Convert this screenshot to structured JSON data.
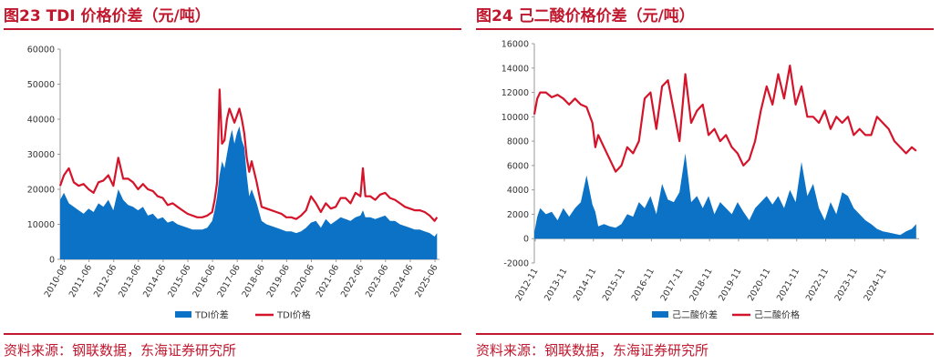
{
  "colors": {
    "accent": "#c0182e",
    "area": "#0b72c6",
    "line": "#d4142a",
    "axis": "#999999",
    "text": "#333333"
  },
  "chart_data": [
    {
      "type": "area+line",
      "title": "图23  TDI 价格价差（元/吨）",
      "source": "资料来源：钢联数据，东海证券研究所",
      "y_ticks": [
        "0",
        "10000",
        "20000",
        "30000",
        "40000",
        "50000",
        "60000"
      ],
      "ylim": [
        0,
        60000
      ],
      "x_ticks": [
        "2010-06",
        "2011-06",
        "2012-06",
        "2013-06",
        "2014-06",
        "2015-06",
        "2016-06",
        "2017-06",
        "2018-06",
        "2019-06",
        "2020-06",
        "2021-06",
        "2022-06",
        "2023-06",
        "2024-06",
        "2025-06"
      ],
      "xlim": [
        2010.25,
        2025.6
      ],
      "grid": false,
      "legend_position": "bottom",
      "series": [
        {
          "name": "TDI价差",
          "kind": "area",
          "x": [
            2010.25,
            2010.4,
            2010.6,
            2010.8,
            2011.0,
            2011.2,
            2011.4,
            2011.6,
            2011.8,
            2012.0,
            2012.2,
            2012.4,
            2012.6,
            2012.8,
            2013.0,
            2013.2,
            2013.4,
            2013.6,
            2013.8,
            2014.0,
            2014.2,
            2014.4,
            2014.6,
            2014.8,
            2015.0,
            2015.2,
            2015.4,
            2015.6,
            2015.8,
            2016.0,
            2016.2,
            2016.4,
            2016.5,
            2016.6,
            2016.7,
            2016.8,
            2016.9,
            2017.0,
            2017.1,
            2017.2,
            2017.3,
            2017.4,
            2017.5,
            2017.6,
            2017.7,
            2017.8,
            2017.9,
            2018.0,
            2018.2,
            2018.4,
            2018.6,
            2018.8,
            2019.0,
            2019.2,
            2019.4,
            2019.6,
            2019.8,
            2020.0,
            2020.2,
            2020.4,
            2020.6,
            2020.8,
            2021.0,
            2021.2,
            2021.4,
            2021.6,
            2021.8,
            2022.0,
            2022.2,
            2022.4,
            2022.5,
            2022.6,
            2022.8,
            2023.0,
            2023.2,
            2023.4,
            2023.6,
            2023.8,
            2024.0,
            2024.2,
            2024.4,
            2024.6,
            2024.8,
            2025.0,
            2025.2,
            2025.4,
            2025.5
          ],
          "y": [
            17000,
            19000,
            16000,
            15000,
            14000,
            13000,
            14500,
            13500,
            16000,
            15000,
            17000,
            14000,
            20000,
            17000,
            15500,
            15000,
            14000,
            15000,
            12500,
            13000,
            11500,
            12000,
            10500,
            11000,
            10000,
            9500,
            9000,
            8500,
            8500,
            8500,
            9000,
            11000,
            14000,
            18000,
            24000,
            28000,
            26000,
            30000,
            34000,
            37000,
            33000,
            36000,
            38000,
            34000,
            32000,
            24000,
            18000,
            20000,
            16000,
            11000,
            10000,
            9500,
            9000,
            8500,
            8000,
            8000,
            7500,
            8000,
            9000,
            10500,
            11000,
            9000,
            11500,
            10000,
            11000,
            12000,
            11500,
            11000,
            12000,
            12500,
            14000,
            12000,
            12000,
            11500,
            12000,
            12500,
            11000,
            11000,
            10000,
            9500,
            9000,
            8500,
            8500,
            8000,
            7500,
            6500,
            7500
          ]
        },
        {
          "name": "TDI价格",
          "kind": "line",
          "x": [
            2010.25,
            2010.4,
            2010.6,
            2010.8,
            2011.0,
            2011.2,
            2011.4,
            2011.6,
            2011.8,
            2012.0,
            2012.2,
            2012.4,
            2012.6,
            2012.8,
            2013.0,
            2013.2,
            2013.4,
            2013.6,
            2013.8,
            2014.0,
            2014.2,
            2014.4,
            2014.6,
            2014.8,
            2015.0,
            2015.2,
            2015.4,
            2015.6,
            2015.8,
            2016.0,
            2016.2,
            2016.4,
            2016.5,
            2016.6,
            2016.7,
            2016.8,
            2016.9,
            2017.0,
            2017.1,
            2017.2,
            2017.3,
            2017.4,
            2017.5,
            2017.6,
            2017.7,
            2017.8,
            2017.9,
            2018.0,
            2018.2,
            2018.4,
            2018.6,
            2018.8,
            2019.0,
            2019.2,
            2019.4,
            2019.6,
            2019.8,
            2020.0,
            2020.2,
            2020.4,
            2020.6,
            2020.8,
            2021.0,
            2021.2,
            2021.4,
            2021.6,
            2021.8,
            2022.0,
            2022.2,
            2022.4,
            2022.5,
            2022.6,
            2022.8,
            2023.0,
            2023.2,
            2023.4,
            2023.6,
            2023.8,
            2024.0,
            2024.2,
            2024.4,
            2024.6,
            2024.8,
            2025.0,
            2025.2,
            2025.4,
            2025.5
          ],
          "y": [
            21000,
            24000,
            26000,
            22000,
            21000,
            21500,
            20000,
            19000,
            22000,
            22500,
            24000,
            21000,
            29000,
            23000,
            23000,
            22000,
            20000,
            21500,
            20000,
            19500,
            18000,
            17500,
            15500,
            16000,
            15000,
            14000,
            13000,
            12500,
            12000,
            12000,
            12500,
            13500,
            17000,
            22000,
            48500,
            33000,
            34000,
            40000,
            43000,
            41000,
            39000,
            41000,
            43000,
            40000,
            36000,
            29000,
            25000,
            28000,
            22000,
            15000,
            14500,
            14000,
            13500,
            13000,
            12000,
            12000,
            11500,
            12500,
            14000,
            18000,
            16000,
            13500,
            16000,
            14500,
            15000,
            17500,
            17500,
            16000,
            19000,
            18000,
            26000,
            18000,
            18000,
            17000,
            18500,
            19000,
            17500,
            17000,
            16000,
            15000,
            14500,
            14000,
            14000,
            13500,
            12500,
            11000,
            12000
          ]
        }
      ]
    },
    {
      "type": "area+line",
      "title": "图24  己二酸价格价差（元/吨）",
      "source": "资料来源：钢联数据，东海证券研究所",
      "y_ticks": [
        "-2000",
        "0",
        "2000",
        "4000",
        "6000",
        "8000",
        "10000",
        "12000",
        "14000",
        "16000"
      ],
      "ylim": [
        -2000,
        16000
      ],
      "x_ticks": [
        "2012-11",
        "2013-11",
        "2014-11",
        "2015-11",
        "2016-11",
        "2017-11",
        "2018-11",
        "2019-11",
        "2020-11",
        "2021-11",
        "2022-11",
        "2023-11",
        "2024-11"
      ],
      "xlim": [
        2012.8,
        2026.05
      ],
      "grid": false,
      "legend_position": "bottom",
      "series": [
        {
          "name": "己二酸价差",
          "kind": "area",
          "x": [
            2012.8,
            2012.9,
            2013.0,
            2013.2,
            2013.4,
            2013.6,
            2013.8,
            2014.0,
            2014.2,
            2014.4,
            2014.6,
            2014.8,
            2014.9,
            2015.0,
            2015.2,
            2015.4,
            2015.6,
            2015.8,
            2016.0,
            2016.2,
            2016.4,
            2016.6,
            2016.8,
            2017.0,
            2017.2,
            2017.4,
            2017.6,
            2017.8,
            2018.0,
            2018.2,
            2018.4,
            2018.6,
            2018.8,
            2019.0,
            2019.2,
            2019.4,
            2019.6,
            2019.8,
            2020.0,
            2020.2,
            2020.4,
            2020.6,
            2020.8,
            2021.0,
            2021.2,
            2021.4,
            2021.6,
            2021.8,
            2022.0,
            2022.2,
            2022.4,
            2022.6,
            2022.8,
            2023.0,
            2023.2,
            2023.4,
            2023.6,
            2023.8,
            2024.0,
            2024.2,
            2024.4,
            2024.6,
            2024.8,
            2025.0,
            2025.2,
            2025.4,
            2025.6,
            2025.8,
            2025.95
          ],
          "y": [
            500,
            1800,
            2500,
            2000,
            2200,
            1500,
            2500,
            1800,
            2500,
            3000,
            5200,
            2800,
            2200,
            1000,
            1200,
            1000,
            900,
            1200,
            2000,
            1800,
            3000,
            2500,
            3500,
            2000,
            4500,
            3200,
            3000,
            3800,
            7000,
            3000,
            3500,
            2500,
            3500,
            2000,
            3000,
            2500,
            2000,
            3000,
            2200,
            1500,
            2500,
            3000,
            3500,
            2800,
            3500,
            2500,
            4000,
            3000,
            6300,
            3500,
            4500,
            2500,
            1500,
            3000,
            2000,
            3800,
            3500,
            2500,
            2000,
            1500,
            1200,
            800,
            600,
            500,
            400,
            300,
            600,
            800,
            1200
          ]
        },
        {
          "name": "己二酸价格",
          "kind": "line",
          "x": [
            2012.8,
            2012.9,
            2013.0,
            2013.2,
            2013.4,
            2013.6,
            2013.8,
            2014.0,
            2014.2,
            2014.4,
            2014.6,
            2014.8,
            2014.9,
            2015.0,
            2015.2,
            2015.4,
            2015.6,
            2015.8,
            2016.0,
            2016.2,
            2016.4,
            2016.6,
            2016.8,
            2017.0,
            2017.2,
            2017.4,
            2017.6,
            2017.8,
            2018.0,
            2018.2,
            2018.4,
            2018.6,
            2018.8,
            2019.0,
            2019.2,
            2019.4,
            2019.6,
            2019.8,
            2020.0,
            2020.2,
            2020.4,
            2020.6,
            2020.8,
            2021.0,
            2021.2,
            2021.4,
            2021.6,
            2021.8,
            2022.0,
            2022.2,
            2022.4,
            2022.6,
            2022.8,
            2023.0,
            2023.2,
            2023.4,
            2023.6,
            2023.8,
            2024.0,
            2024.2,
            2024.4,
            2024.6,
            2024.8,
            2025.0,
            2025.2,
            2025.4,
            2025.6,
            2025.8,
            2025.95
          ],
          "y": [
            10200,
            11500,
            12000,
            12000,
            11600,
            11800,
            11500,
            11000,
            11500,
            11000,
            10800,
            9500,
            7500,
            8500,
            7500,
            6500,
            5500,
            6000,
            7500,
            7000,
            8000,
            11500,
            12000,
            9000,
            12500,
            13000,
            10500,
            8000,
            13500,
            9500,
            10500,
            11000,
            8500,
            9000,
            8000,
            8500,
            7500,
            7000,
            6000,
            6500,
            8000,
            10500,
            12500,
            11000,
            13500,
            11500,
            14200,
            11000,
            12500,
            10000,
            10000,
            9500,
            10500,
            9000,
            10000,
            9500,
            10000,
            8500,
            9000,
            8500,
            8500,
            10000,
            9500,
            9000,
            8000,
            7500,
            7000,
            7500,
            7200
          ]
        }
      ]
    }
  ]
}
